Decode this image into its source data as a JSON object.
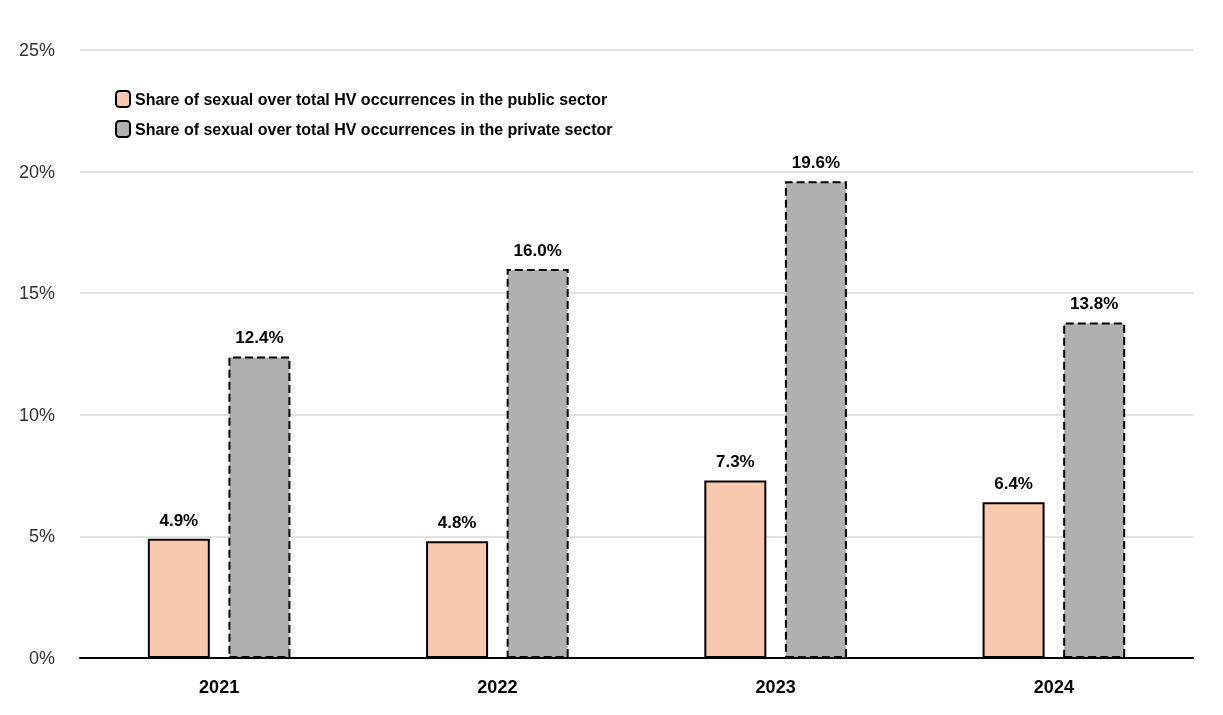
{
  "chart_data": {
    "type": "bar",
    "categories": [
      "2021",
      "2022",
      "2023",
      "2024"
    ],
    "series": [
      {
        "name": "Share of sexual over total HV occurrences in the public sector",
        "color": "#f8c9ad",
        "line_style": "solid",
        "values": [
          4.9,
          4.8,
          7.3,
          6.4
        ],
        "value_labels": [
          "4.9%",
          "4.8%",
          "7.3%",
          "6.4%"
        ]
      },
      {
        "name": "Share of sexual over total HV occurrences in the private sector",
        "color": "#b0b0b0",
        "line_style": "dashed",
        "values": [
          12.4,
          16.0,
          19.6,
          13.8
        ],
        "value_labels": [
          "12.4%",
          "16.0%",
          "19.6%",
          "13.8%"
        ]
      }
    ],
    "ylim": [
      0,
      25
    ],
    "yticks": [
      {
        "value": 0,
        "label": "0%"
      },
      {
        "value": 5,
        "label": "5%"
      },
      {
        "value": 10,
        "label": "10%"
      },
      {
        "value": 15,
        "label": "15%"
      },
      {
        "value": 20,
        "label": "20%"
      },
      {
        "value": 25,
        "label": "25%"
      }
    ],
    "grid": "y",
    "legend": "top left"
  }
}
